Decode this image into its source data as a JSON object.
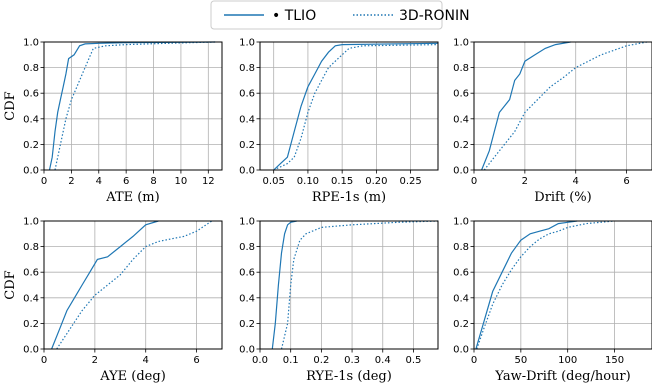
{
  "legend": {
    "items": [
      {
        "label": "• TLIO",
        "style": "solid",
        "color": "#1f77b4"
      },
      {
        "label": "3D-RONIN",
        "style": "dotted",
        "color": "#1f77b4"
      }
    ],
    "placement": "top-center"
  },
  "chart_data": [
    {
      "type": "line",
      "title": "",
      "xlabel": "ATE (m)",
      "ylabel": "CDF",
      "xlim": [
        0,
        13
      ],
      "ylim": [
        0,
        1
      ],
      "xticks": [
        0,
        2,
        4,
        6,
        8,
        10,
        12
      ],
      "xtick_labels": [
        "0",
        "2",
        "4",
        "6",
        "8",
        "10",
        "12"
      ],
      "yticks": [
        0,
        0.2,
        0.4,
        0.6,
        0.8,
        1.0
      ],
      "ytick_labels": [
        "0.0",
        "0.2",
        "0.4",
        "0.6",
        "0.8",
        "1.0"
      ],
      "grid": true,
      "series": [
        {
          "name": "TLIO",
          "style": "solid",
          "x": [
            0.4,
            0.6,
            0.8,
            1.0,
            1.2,
            1.4,
            1.6,
            1.8,
            2.2,
            2.6,
            3.0,
            4.0,
            6.0,
            12.5
          ],
          "y": [
            0.0,
            0.1,
            0.3,
            0.45,
            0.55,
            0.65,
            0.75,
            0.87,
            0.9,
            0.97,
            0.985,
            0.99,
            0.995,
            1.0
          ]
        },
        {
          "name": "3D-RONIN",
          "style": "dotted",
          "x": [
            0.8,
            1.0,
            1.3,
            1.6,
            2.0,
            2.4,
            2.8,
            3.2,
            3.6,
            4.5,
            6.0,
            9.0,
            12.5
          ],
          "y": [
            0.0,
            0.1,
            0.25,
            0.4,
            0.55,
            0.65,
            0.75,
            0.85,
            0.95,
            0.97,
            0.98,
            0.99,
            1.0
          ]
        }
      ]
    },
    {
      "type": "line",
      "title": "",
      "xlabel": "RPE-1s (m)",
      "ylabel": "",
      "xlim": [
        0.03,
        0.29
      ],
      "ylim": [
        0,
        1
      ],
      "xticks": [
        0.05,
        0.1,
        0.15,
        0.2,
        0.25
      ],
      "xtick_labels": [
        "0.05",
        "0.10",
        "0.15",
        "0.20",
        "0.25"
      ],
      "yticks": [
        0,
        0.2,
        0.4,
        0.6,
        0.8,
        1.0
      ],
      "ytick_labels": [
        "0.0",
        "0.2",
        "0.4",
        "0.6",
        "0.8",
        "1.0"
      ],
      "grid": true,
      "series": [
        {
          "name": "TLIO",
          "style": "solid",
          "x": [
            0.05,
            0.06,
            0.07,
            0.08,
            0.09,
            0.1,
            0.11,
            0.12,
            0.13,
            0.14,
            0.15,
            0.29
          ],
          "y": [
            0.0,
            0.05,
            0.1,
            0.3,
            0.5,
            0.65,
            0.75,
            0.85,
            0.92,
            0.97,
            0.98,
            0.99
          ]
        },
        {
          "name": "3D-RONIN",
          "style": "dotted",
          "x": [
            0.05,
            0.07,
            0.08,
            0.09,
            0.1,
            0.11,
            0.12,
            0.13,
            0.14,
            0.16,
            0.18,
            0.29
          ],
          "y": [
            0.0,
            0.05,
            0.1,
            0.25,
            0.45,
            0.6,
            0.7,
            0.8,
            0.85,
            0.95,
            0.97,
            0.98
          ]
        }
      ]
    },
    {
      "type": "line",
      "title": "",
      "xlabel": "Drift (%)",
      "ylabel": "",
      "xlim": [
        0,
        7
      ],
      "ylim": [
        0,
        1
      ],
      "xticks": [
        0,
        2,
        4,
        6
      ],
      "xtick_labels": [
        "0",
        "2",
        "4",
        "6"
      ],
      "yticks": [
        0,
        0.2,
        0.4,
        0.6,
        0.8,
        1.0
      ],
      "ytick_labels": [
        "0.0",
        "0.2",
        "0.4",
        "0.6",
        "0.8",
        "1.0"
      ],
      "grid": true,
      "series": [
        {
          "name": "TLIO",
          "style": "solid",
          "x": [
            0.3,
            0.6,
            0.8,
            1.0,
            1.2,
            1.4,
            1.6,
            1.8,
            2.0,
            2.4,
            2.8,
            3.2,
            3.8
          ],
          "y": [
            0.0,
            0.15,
            0.3,
            0.45,
            0.5,
            0.55,
            0.7,
            0.75,
            0.85,
            0.9,
            0.95,
            0.98,
            1.0
          ]
        },
        {
          "name": "3D-RONIN",
          "style": "dotted",
          "x": [
            0.4,
            0.8,
            1.2,
            1.6,
            2.0,
            2.5,
            3.0,
            3.5,
            4.0,
            4.5,
            5.0,
            6.0,
            6.8
          ],
          "y": [
            0.0,
            0.1,
            0.2,
            0.3,
            0.45,
            0.55,
            0.65,
            0.72,
            0.8,
            0.85,
            0.9,
            0.97,
            1.0
          ]
        }
      ]
    },
    {
      "type": "line",
      "title": "",
      "xlabel": "AYE (deg)",
      "ylabel": "CDF",
      "xlim": [
        0,
        7
      ],
      "ylim": [
        0,
        1
      ],
      "xticks": [
        0,
        2,
        4,
        6
      ],
      "xtick_labels": [
        "0",
        "2",
        "4",
        "6"
      ],
      "yticks": [
        0,
        0.2,
        0.4,
        0.6,
        0.8,
        1.0
      ],
      "ytick_labels": [
        "0.0",
        "0.2",
        "0.4",
        "0.6",
        "0.8",
        "1.0"
      ],
      "grid": true,
      "series": [
        {
          "name": "TLIO",
          "style": "solid",
          "x": [
            0.3,
            0.6,
            0.9,
            1.2,
            1.5,
            1.8,
            2.1,
            2.5,
            3.0,
            3.5,
            4.0,
            4.5
          ],
          "y": [
            0.0,
            0.15,
            0.3,
            0.4,
            0.5,
            0.6,
            0.7,
            0.72,
            0.8,
            0.88,
            0.97,
            1.0
          ]
        },
        {
          "name": "3D-RONIN",
          "style": "dotted",
          "x": [
            0.5,
            1.0,
            1.5,
            2.0,
            2.5,
            3.0,
            3.5,
            4.0,
            4.5,
            5.0,
            5.5,
            6.0,
            6.6
          ],
          "y": [
            0.0,
            0.15,
            0.3,
            0.42,
            0.5,
            0.58,
            0.7,
            0.8,
            0.84,
            0.86,
            0.88,
            0.92,
            1.0
          ]
        }
      ]
    },
    {
      "type": "line",
      "title": "",
      "xlabel": "RYE-1s (deg)",
      "ylabel": "",
      "xlim": [
        0,
        0.58
      ],
      "ylim": [
        0,
        1
      ],
      "xticks": [
        0,
        0.1,
        0.2,
        0.3,
        0.4,
        0.5
      ],
      "xtick_labels": [
        "0.0",
        "0.1",
        "0.2",
        "0.3",
        "0.4",
        "0.5"
      ],
      "yticks": [
        0,
        0.2,
        0.4,
        0.6,
        0.8,
        1.0
      ],
      "ytick_labels": [
        "0.0",
        "0.2",
        "0.4",
        "0.6",
        "0.8",
        "1.0"
      ],
      "grid": true,
      "series": [
        {
          "name": "TLIO",
          "style": "solid",
          "x": [
            0.04,
            0.05,
            0.06,
            0.07,
            0.08,
            0.09,
            0.1,
            0.12
          ],
          "y": [
            0.0,
            0.2,
            0.5,
            0.75,
            0.9,
            0.97,
            0.99,
            1.0
          ]
        },
        {
          "name": "3D-RONIN",
          "style": "dotted",
          "x": [
            0.07,
            0.09,
            0.1,
            0.11,
            0.13,
            0.15,
            0.2,
            0.3,
            0.45,
            0.58
          ],
          "y": [
            0.0,
            0.2,
            0.5,
            0.7,
            0.85,
            0.9,
            0.95,
            0.97,
            0.99,
            1.0
          ]
        }
      ]
    },
    {
      "type": "line",
      "title": "",
      "xlabel": "Yaw-Drift (deg/hour)",
      "ylabel": "",
      "xlim": [
        0,
        190
      ],
      "ylim": [
        0,
        1
      ],
      "xticks": [
        0,
        50,
        100,
        150
      ],
      "xtick_labels": [
        "0",
        "50",
        "100",
        "150"
      ],
      "yticks": [
        0,
        0.2,
        0.4,
        0.6,
        0.8,
        1.0
      ],
      "ytick_labels": [
        "0.0",
        "0.2",
        "0.4",
        "0.6",
        "0.8",
        "1.0"
      ],
      "grid": true,
      "series": [
        {
          "name": "TLIO",
          "style": "solid",
          "x": [
            2,
            10,
            20,
            30,
            40,
            50,
            60,
            70,
            80,
            90,
            100,
            110
          ],
          "y": [
            0.0,
            0.2,
            0.45,
            0.6,
            0.75,
            0.85,
            0.9,
            0.92,
            0.94,
            0.98,
            0.99,
            1.0
          ]
        },
        {
          "name": "3D-RONIN",
          "style": "dotted",
          "x": [
            3,
            10,
            20,
            30,
            40,
            50,
            60,
            70,
            80,
            90,
            100,
            120,
            150
          ],
          "y": [
            0.0,
            0.15,
            0.35,
            0.5,
            0.62,
            0.72,
            0.8,
            0.86,
            0.9,
            0.92,
            0.95,
            0.98,
            1.0
          ]
        }
      ]
    }
  ]
}
